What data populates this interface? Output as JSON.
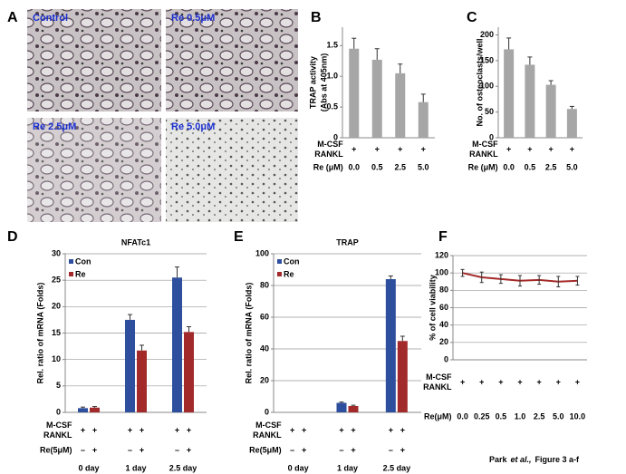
{
  "panel_a": {
    "panel": "A",
    "labels": [
      "Control",
      "Re 0.5μM",
      "Re 2.5μM",
      "Re 5.0μM"
    ]
  },
  "caption": {
    "author": "Park",
    "etal": "et al.,",
    "rest": "Figure 3 a-f"
  },
  "chart_data": [
    {
      "type": "bar",
      "panel": "B",
      "y_label": [
        "TRAP activity",
        "(Abs at 405nm)"
      ],
      "categories": [
        "0.0",
        "0.5",
        "2.5",
        "5.0"
      ],
      "values": [
        1.45,
        1.27,
        1.05,
        0.58
      ],
      "errors": [
        0.17,
        0.18,
        0.15,
        0.13
      ],
      "color": "#a6a6a6",
      "ylim": [
        0,
        1.8
      ],
      "yticks": [
        0,
        0.5,
        {
          "value": 1,
          "label": "1.0"
        },
        1.5
      ],
      "grid": false,
      "rows": [
        {
          "labels": [
            "M-CSF",
            "RANKL"
          ],
          "signs": [
            "+",
            "+",
            "+",
            "+"
          ]
        }
      ],
      "x_label": "Re (μM)"
    },
    {
      "type": "bar",
      "panel": "C",
      "y_label": [
        "No. of osteoclasts/well"
      ],
      "categories": [
        "0.0",
        "0.5",
        "2.5",
        "5.0"
      ],
      "values": [
        172,
        142,
        103,
        56
      ],
      "errors": [
        22,
        15,
        8,
        5
      ],
      "color": "#a6a6a6",
      "ylim": [
        0,
        215
      ],
      "yticks": [
        0,
        50,
        100,
        150,
        200
      ],
      "grid": false,
      "rows": [
        {
          "labels": [
            "M-CSF",
            "RANKL"
          ],
          "signs": [
            "+",
            "+",
            "+",
            "+"
          ]
        }
      ],
      "x_label": "Re (μM)"
    },
    {
      "type": "bar",
      "panel": "D",
      "title": "NFATc1",
      "y_label": [
        "Rel. ratio of mRNA (Folds)"
      ],
      "categories": [
        "0 day",
        "1 day",
        "2.5 day"
      ],
      "series": [
        {
          "name": "Con",
          "color": "#2e4f9e",
          "values": [
            0.8,
            17.5,
            25.5
          ],
          "errors": [
            0.2,
            1,
            2
          ]
        },
        {
          "name": "Re",
          "color": "#a32a2a",
          "values": [
            0.9,
            11.7,
            15.2
          ],
          "errors": [
            0.2,
            1,
            1
          ]
        }
      ],
      "ylim": [
        0,
        30
      ],
      "yticks": [
        0,
        5,
        10,
        15,
        20,
        25,
        30
      ],
      "grid": true,
      "rows": [
        {
          "labels": [
            "M-CSF",
            "RANKL"
          ],
          "signs": [
            "+",
            "+",
            "+",
            "+",
            "+",
            "+"
          ]
        },
        {
          "labels": [
            "Re(5μM)"
          ],
          "signs": [
            "–",
            "+",
            "–",
            "+",
            "–",
            "+"
          ]
        }
      ]
    },
    {
      "type": "bar",
      "panel": "E",
      "title": "TRAP",
      "y_label": [
        "Rel. ratio of mRNA (Folds)"
      ],
      "categories": [
        "0 day",
        "1 day",
        "2.5 day"
      ],
      "series": [
        {
          "name": "Con",
          "color": "#2e4f9e",
          "values": [
            0,
            6,
            84
          ],
          "errors": [
            0,
            0.5,
            2
          ]
        },
        {
          "name": "Re",
          "color": "#a32a2a",
          "values": [
            0,
            4,
            45
          ],
          "errors": [
            0,
            0.5,
            3
          ]
        }
      ],
      "ylim": [
        0,
        100
      ],
      "yticks": [
        0,
        20,
        40,
        60,
        80,
        100
      ],
      "grid": true,
      "rows": [
        {
          "labels": [
            "M-CSF",
            "RANKL"
          ],
          "signs": [
            "+",
            "+",
            "+",
            "+",
            "+",
            "+"
          ]
        },
        {
          "labels": [
            "Re(5μM)"
          ],
          "signs": [
            "–",
            "+",
            "–",
            "+",
            "–",
            "+"
          ]
        }
      ]
    },
    {
      "type": "line",
      "panel": "F",
      "y_label": [
        "% of cell viability"
      ],
      "categories": [
        "0.0",
        "0.25",
        "0.5",
        "1.0",
        "2.5",
        "5.0",
        "10.0"
      ],
      "values": [
        100,
        95,
        93,
        91,
        92,
        90,
        91
      ],
      "errors": [
        4,
        6,
        5,
        6,
        5,
        6,
        5
      ],
      "color": "#a52a2a",
      "ylim": [
        0,
        120
      ],
      "yticks": [
        0,
        20,
        40,
        60,
        80,
        100,
        120
      ],
      "grid": true,
      "rows": [
        {
          "labels": [
            "M-CSF",
            "RANKL"
          ],
          "signs": [
            "+",
            "+",
            "+",
            "+",
            "+",
            "+",
            "+"
          ]
        }
      ],
      "x_label": "Re(μM)"
    }
  ]
}
